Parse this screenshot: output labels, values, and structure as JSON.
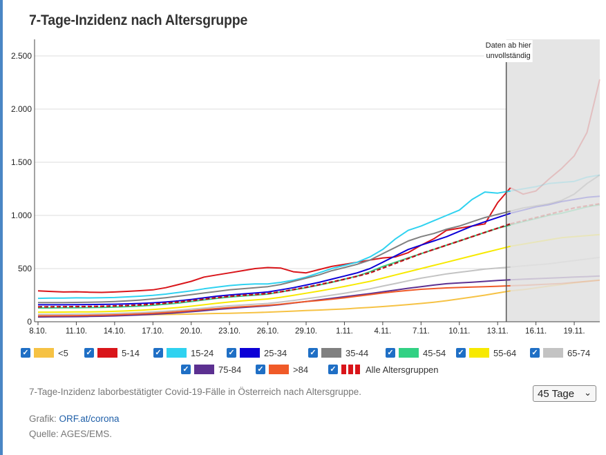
{
  "title": "7-Tage-Inzidenz nach Altersgruppe",
  "annotation": [
    "Daten ab hier",
    "unvollständig"
  ],
  "caption": "7-Tage-Inzidenz laborbestätigter Covid-19-Fälle in Österreich nach Altersgruppe.",
  "credit_label": "Grafik:",
  "credit_link": "ORF.at/corona",
  "source": "Quelle: AGES/EMS.",
  "select_value": "45 Tage",
  "colors": {
    "accent": "#1f6fc5",
    "incomplete_bg": "#e5e5e5",
    "grid": "#d8d8d8"
  },
  "chart_data": {
    "type": "line",
    "title": "7-Tage-Inzidenz nach Altersgruppe",
    "x": [
      "8.10.",
      "9.10.",
      "10.10.",
      "11.10.",
      "12.10.",
      "13.10.",
      "14.10.",
      "15.10.",
      "16.10.",
      "17.10.",
      "18.10.",
      "19.10.",
      "20.10.",
      "21.10.",
      "22.10.",
      "23.10.",
      "24.10.",
      "25.10.",
      "26.10.",
      "27.10.",
      "28.10.",
      "29.10.",
      "30.10.",
      "31.10.",
      "1.11.",
      "2.11.",
      "3.11.",
      "4.11.",
      "5.11.",
      "6.11.",
      "7.11.",
      "8.11.",
      "9.11.",
      "10.11.",
      "11.11.",
      "12.11.",
      "13.11.",
      "14.11.",
      "15.11.",
      "16.11.",
      "17.11.",
      "18.11.",
      "19.11.",
      "20.11.",
      "21.11."
    ],
    "xticks": [
      "8.10.",
      "11.10.",
      "14.10.",
      "17.10.",
      "20.10.",
      "23.10.",
      "26.10.",
      "29.10.",
      "1.11.",
      "4.11.",
      "7.11.",
      "10.11.",
      "13.11.",
      "16.11.",
      "19.11."
    ],
    "yticks": [
      0,
      500,
      1000,
      1500,
      2000,
      2500
    ],
    "ytick_labels": [
      "0",
      "500",
      "1.000",
      "1.500",
      "2.000",
      "2.500"
    ],
    "ylim": [
      0,
      2500
    ],
    "incomplete_from": "14.11.",
    "grid": true,
    "series": [
      {
        "name": "<5",
        "color": "#f6c244",
        "values": [
          50,
          52,
          54,
          55,
          57,
          58,
          60,
          62,
          64,
          66,
          68,
          70,
          72,
          75,
          78,
          80,
          83,
          86,
          90,
          95,
          100,
          105,
          110,
          115,
          120,
          128,
          135,
          143,
          152,
          162,
          172,
          184,
          198,
          215,
          232,
          250,
          270,
          290,
          302,
          318,
          335,
          350,
          365,
          380,
          392
        ]
      },
      {
        "name": "5-14",
        "color": "#d9151a",
        "values": [
          290,
          285,
          280,
          282,
          278,
          276,
          280,
          286,
          292,
          300,
          320,
          350,
          380,
          420,
          440,
          460,
          480,
          500,
          510,
          505,
          470,
          460,
          490,
          520,
          540,
          560,
          580,
          600,
          610,
          650,
          720,
          780,
          860,
          880,
          900,
          920,
          1120,
          1260,
          1200,
          1230,
          1340,
          1440,
          1560,
          1780,
          2280
        ]
      },
      {
        "name": "15-24",
        "color": "#2fd2f0",
        "values": [
          220,
          222,
          223,
          225,
          224,
          226,
          228,
          234,
          240,
          248,
          260,
          275,
          290,
          310,
          325,
          340,
          350,
          355,
          355,
          370,
          390,
          420,
          460,
          500,
          530,
          560,
          610,
          680,
          780,
          860,
          900,
          950,
          1000,
          1050,
          1150,
          1220,
          1210,
          1230,
          1250,
          1270,
          1300,
          1310,
          1320,
          1360,
          1380
        ]
      },
      {
        "name": "25-34",
        "color": "#0c00d6",
        "values": [
          160,
          160,
          160,
          161,
          162,
          163,
          165,
          168,
          172,
          178,
          186,
          196,
          210,
          225,
          240,
          252,
          262,
          270,
          280,
          300,
          320,
          345,
          370,
          400,
          430,
          460,
          500,
          560,
          620,
          680,
          720,
          760,
          800,
          850,
          900,
          940,
          980,
          1020,
          1050,
          1080,
          1100,
          1130,
          1150,
          1170,
          1180
        ]
      },
      {
        "name": "35-44",
        "color": "#808080",
        "values": [
          180,
          180,
          180,
          182,
          184,
          186,
          190,
          196,
          204,
          214,
          226,
          240,
          255,
          270,
          285,
          300,
          310,
          320,
          330,
          350,
          380,
          410,
          440,
          480,
          510,
          540,
          580,
          640,
          700,
          760,
          800,
          830,
          870,
          900,
          940,
          980,
          1010,
          1040,
          1070,
          1090,
          1110,
          1140,
          1200,
          1300,
          1380
        ]
      },
      {
        "name": "45-54",
        "color": "#32d184",
        "values": [
          130,
          130,
          131,
          132,
          133,
          135,
          138,
          142,
          148,
          155,
          165,
          176,
          190,
          205,
          220,
          232,
          242,
          250,
          260,
          280,
          300,
          320,
          345,
          370,
          400,
          430,
          470,
          520,
          560,
          600,
          640,
          680,
          720,
          760,
          800,
          840,
          880,
          910,
          940,
          970,
          1000,
          1020,
          1050,
          1080,
          1100
        ]
      },
      {
        "name": "55-64",
        "color": "#f7e900",
        "values": [
          90,
          90,
          91,
          92,
          93,
          95,
          98,
          102,
          108,
          115,
          124,
          134,
          146,
          160,
          174,
          186,
          196,
          205,
          214,
          230,
          248,
          268,
          288,
          310,
          332,
          356,
          380,
          410,
          440,
          470,
          500,
          530,
          560,
          590,
          620,
          650,
          680,
          710,
          730,
          750,
          770,
          790,
          800,
          810,
          820
        ]
      },
      {
        "name": "65-74",
        "color": "#c3c3c3",
        "values": [
          70,
          70,
          71,
          72,
          73,
          75,
          78,
          82,
          86,
          92,
          99,
          108,
          118,
          128,
          140,
          150,
          158,
          165,
          172,
          185,
          200,
          216,
          232,
          250,
          268,
          288,
          310,
          335,
          360,
          385,
          410,
          430,
          450,
          465,
          480,
          495,
          505,
          515,
          525,
          535,
          545,
          560,
          575,
          590,
          605
        ]
      },
      {
        "name": "75-84",
        "color": "#5c3091",
        "values": [
          45,
          46,
          47,
          48,
          50,
          52,
          55,
          59,
          64,
          70,
          77,
          85,
          94,
          104,
          115,
          125,
          134,
          142,
          150,
          162,
          176,
          190,
          205,
          220,
          235,
          250,
          265,
          282,
          298,
          315,
          330,
          345,
          358,
          365,
          372,
          380,
          388,
          394,
          400,
          405,
          410,
          415,
          420,
          425,
          430
        ]
      },
      {
        "name": ">84",
        "color": "#f05a28",
        "values": [
          55,
          56,
          57,
          58,
          60,
          62,
          65,
          69,
          74,
          80,
          87,
          95,
          104,
          114,
          124,
          133,
          141,
          148,
          155,
          165,
          178,
          190,
          200,
          212,
          225,
          240,
          255,
          270,
          283,
          295,
          305,
          312,
          318,
          322,
          326,
          330,
          334,
          338,
          342,
          348,
          354,
          360,
          370,
          380,
          390
        ]
      },
      {
        "name": "Alle Altersgruppen",
        "color": "#d9151a",
        "dashed": true,
        "values": [
          140,
          140,
          141,
          142,
          143,
          145,
          148,
          152,
          158,
          165,
          174,
          185,
          198,
          212,
          226,
          238,
          248,
          256,
          265,
          282,
          302,
          324,
          348,
          374,
          400,
          428,
          460,
          505,
          550,
          595,
          640,
          680,
          720,
          760,
          800,
          840,
          880,
          920,
          950,
          980,
          1010,
          1040,
          1070,
          1090,
          1110
        ]
      }
    ]
  }
}
